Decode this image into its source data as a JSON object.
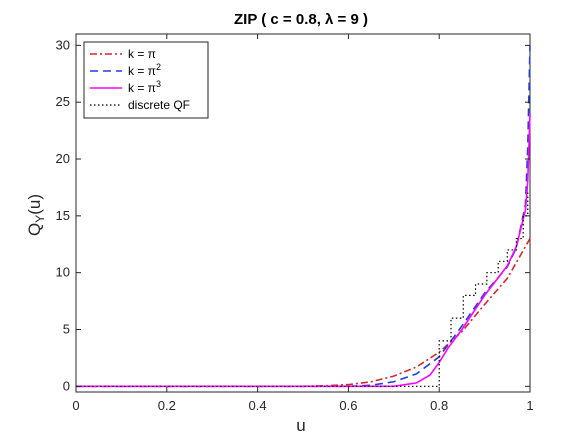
{
  "chart_data": {
    "type": "line",
    "title": "ZIP ( c = 0.8, λ = 9 )",
    "xlabel": "u",
    "ylabel_main": "Q",
    "ylabel_sub": "Y",
    "ylabel_tail": "(u)",
    "xlim": [
      0,
      1
    ],
    "ylim": [
      -0.5,
      31
    ],
    "xticks": [
      0,
      0.2,
      0.4,
      0.6,
      0.8,
      1
    ],
    "xtick_labels": [
      "0",
      "0.2",
      "0.4",
      "0.6",
      "0.8",
      "1"
    ],
    "yticks": [
      0,
      5,
      10,
      15,
      20,
      25,
      30
    ],
    "ytick_labels": [
      "0",
      "5",
      "10",
      "15",
      "20",
      "25",
      "30"
    ],
    "grid": false,
    "legend_position": "top-left",
    "series": [
      {
        "name": "k = π",
        "name_base": "k = π",
        "name_sup": "",
        "color": "#d62728",
        "dash": "dashdot",
        "points": [
          [
            0,
            0
          ],
          [
            0.5,
            0
          ],
          [
            0.55,
            0.05
          ],
          [
            0.6,
            0.15
          ],
          [
            0.65,
            0.4
          ],
          [
            0.7,
            0.9
          ],
          [
            0.75,
            1.7
          ],
          [
            0.8,
            3.0
          ],
          [
            0.85,
            4.8
          ],
          [
            0.9,
            7.2
          ],
          [
            0.95,
            9.5
          ],
          [
            0.98,
            11.6
          ],
          [
            1.0,
            13.0
          ]
        ]
      },
      {
        "name": "k = π2",
        "name_base": "k = π",
        "name_sup": "2",
        "color": "#1f3fe0",
        "dash": "dash",
        "points": [
          [
            0,
            0
          ],
          [
            0.6,
            0
          ],
          [
            0.65,
            0.1
          ],
          [
            0.7,
            0.4
          ],
          [
            0.75,
            1.1
          ],
          [
            0.8,
            2.6
          ],
          [
            0.85,
            5.3
          ],
          [
            0.9,
            8.2
          ],
          [
            0.95,
            10.5
          ],
          [
            0.97,
            12.2
          ],
          [
            0.99,
            16.0
          ],
          [
            0.995,
            21.0
          ],
          [
            1.0,
            30.0
          ]
        ]
      },
      {
        "name": "k = π3",
        "name_base": "k = π",
        "name_sup": "3",
        "color": "#ff00ff",
        "dash": "solid",
        "points": [
          [
            0,
            0
          ],
          [
            0.7,
            0
          ],
          [
            0.75,
            0.3
          ],
          [
            0.78,
            1.0
          ],
          [
            0.8,
            2.1
          ],
          [
            0.82,
            3.4
          ],
          [
            0.85,
            5.0
          ],
          [
            0.9,
            8.0
          ],
          [
            0.95,
            10.6
          ],
          [
            0.97,
            12.3
          ],
          [
            0.99,
            15.5
          ],
          [
            0.995,
            18.0
          ],
          [
            1.0,
            24.0
          ]
        ]
      },
      {
        "name": "discrete QF",
        "name_base": "discrete QF",
        "name_sup": "",
        "color": "#000000",
        "dash": "dot",
        "points": [
          [
            0,
            0
          ],
          [
            0.8,
            0
          ],
          [
            0.8,
            4
          ],
          [
            0.826,
            4
          ],
          [
            0.826,
            6
          ],
          [
            0.853,
            6
          ],
          [
            0.853,
            8
          ],
          [
            0.88,
            8
          ],
          [
            0.88,
            9
          ],
          [
            0.905,
            9
          ],
          [
            0.905,
            10
          ],
          [
            0.93,
            10
          ],
          [
            0.93,
            11
          ],
          [
            0.95,
            11
          ],
          [
            0.95,
            12
          ],
          [
            0.97,
            12
          ],
          [
            0.97,
            13
          ],
          [
            0.985,
            13
          ],
          [
            0.985,
            15
          ],
          [
            0.995,
            15
          ],
          [
            0.995,
            17
          ],
          [
            1.0,
            17
          ]
        ]
      }
    ]
  }
}
